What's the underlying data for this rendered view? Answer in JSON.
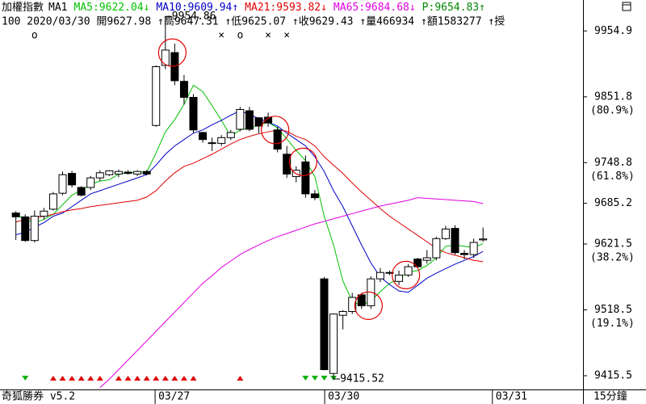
{
  "chart_data": {
    "type": "candlestick",
    "header": [
      "加權指數",
      "MA1"
    ],
    "price_line": {
      "text": "P:9654.83",
      "arrow": "↑",
      "color": "#008800"
    },
    "info_line": "100 2020/03/30 開9627.98 ↑高9647.31 ↑低9625.07 ↑收9629.43 ↑量466934 ↑額1583277 ↑授",
    "footer": "奇狐勝券 v5.2",
    "period": "15分鐘",
    "up_color": "#ffffff",
    "down_color": "#000000",
    "open": [
      9670,
      9664,
      9627,
      9665,
      9676,
      9701,
      9732,
      9710,
      9710,
      9725,
      9730,
      9731,
      9734,
      9731,
      9735,
      9807,
      9901,
      9921,
      9876,
      9851,
      9796,
      9780,
      9779,
      9788,
      9801,
      9830,
      9819,
      9820,
      9800,
      9762,
      9727,
      9750,
      9700,
      9567,
      9419,
      9510,
      9516,
      9542,
      9525,
      9567,
      9577,
      9563,
      9573,
      9598,
      9596,
      9600,
      9630,
      9646,
      9607,
      9605,
      9627.98
    ],
    "high": [
      9673,
      9668,
      9674,
      9678,
      9703,
      9735,
      9736,
      9712,
      9728,
      9737,
      9737,
      9738,
      9737,
      9737,
      9737,
      9901,
      9954.86,
      9935,
      9886,
      9856,
      9797,
      9788,
      9792,
      9800,
      9836,
      9836,
      9820,
      9827,
      9805,
      9775,
      9743,
      9760,
      9706,
      9570,
      9512,
      9518,
      9545,
      9545,
      9571,
      9584,
      9580,
      9580,
      9590,
      9600,
      9612,
      9633,
      9650,
      9651,
      9612,
      9630,
      9647.31
    ],
    "low": [
      9628,
      9625,
      9624,
      9660,
      9674,
      9698,
      9710,
      9696,
      9706,
      9720,
      9728,
      9726,
      9730,
      9728,
      9729,
      9805,
      9895,
      9870,
      9840,
      9795,
      9780,
      9767,
      9775,
      9784,
      9798,
      9798,
      9795,
      9805,
      9765,
      9725,
      9718,
      9694,
      9690,
      9424,
      9415.52,
      9488,
      9512,
      9520,
      9520,
      9562,
      9573,
      9557,
      9570,
      9584,
      9591,
      9596,
      9628,
      9605,
      9598,
      9600,
      9625.07
    ],
    "close": [
      9664,
      9627,
      9665,
      9673,
      9700,
      9730,
      9714,
      9698,
      9725,
      9733,
      9736,
      9735,
      9732,
      9735,
      9731,
      9899,
      9925,
      9877,
      9851,
      9800,
      9785,
      9779,
      9788,
      9796,
      9832,
      9801,
      9806,
      9811,
      9770,
      9731,
      9737,
      9700,
      9694,
      9425,
      9512,
      9516,
      9538,
      9525,
      9567,
      9577,
      9576,
      9573,
      9586,
      9586,
      9600,
      9630,
      9645,
      9608,
      9605,
      9624,
      9629.43
    ],
    "series": [
      {
        "name": "MA5:9622.04",
        "arrow": "↓",
        "color": "#00c000",
        "values": [
          9668,
          9660,
          9655,
          9660,
          9668,
          9683,
          9698,
          9706,
          9715,
          9720,
          9722,
          9731,
          9733,
          9734,
          9734,
          9764,
          9797,
          9816,
          9840,
          9870,
          9860,
          9838,
          9815,
          9790,
          9800,
          9803,
          9807,
          9812,
          9803,
          9786,
          9768,
          9752,
          9727,
          9665,
          9620,
          9564,
          9532,
          9525,
          9533,
          9547,
          9560,
          9567,
          9578,
          9580,
          9588,
          9600,
          9618,
          9620,
          9618,
          9616,
          9622.04
        ]
      },
      {
        "name": "MA10:9609.94",
        "arrow": "↑",
        "color": "#0000c8",
        "values": [
          9636,
          9640,
          9648,
          9655,
          9665,
          9670,
          9680,
          9690,
          9700,
          9705,
          9710,
          9715,
          9720,
          9725,
          9730,
          9745,
          9762,
          9775,
          9785,
          9795,
          9800,
          9808,
          9815,
          9823,
          9830,
          9824,
          9818,
          9812,
          9806,
          9795,
          9785,
          9775,
          9758,
          9735,
          9705,
          9680,
          9650,
          9620,
          9592,
          9570,
          9558,
          9548,
          9546,
          9557,
          9568,
          9576,
          9583,
          9590,
          9596,
          9602,
          9609.94
        ]
      },
      {
        "name": "MA21:9593.82",
        "arrow": "↓",
        "color": "#e00000",
        "values": [
          9656,
          9660,
          9663,
          9665,
          9668,
          9672,
          9675,
          9677,
          9680,
          9682,
          9684,
          9686,
          9688,
          9690,
          9695,
          9705,
          9720,
          9733,
          9743,
          9748,
          9755,
          9762,
          9770,
          9778,
          9785,
          9790,
          9794,
          9797,
          9800,
          9798,
          9790,
          9785,
          9775,
          9758,
          9745,
          9732,
          9717,
          9703,
          9690,
          9677,
          9665,
          9655,
          9645,
          9635,
          9625,
          9615,
          9608,
          9604,
          9600,
          9596,
          9593.82
        ]
      },
      {
        "name": "MA65:9684.68",
        "arrow": "↓",
        "color": "#e000e0",
        "values": [
          null,
          null,
          null,
          null,
          null,
          null,
          null,
          null,
          null,
          9397,
          9410,
          9425,
          9440,
          9455,
          9470,
          9485,
          9500,
          9515,
          9530,
          9545,
          9560,
          9572,
          9585,
          9595,
          9605,
          9613,
          9620,
          9627,
          9633,
          9638,
          9643,
          9648,
          9653,
          9657,
          9661,
          9665,
          9669,
          9673,
          9677,
          9681,
          9684,
          9687,
          9690,
          9694,
          9693,
          9692,
          9691,
          9690,
          9689,
          9688,
          9684.68
        ]
      }
    ],
    "xlim": [
      -1.7,
      60.7
    ],
    "ylim": [
      9394,
      9978
    ],
    "yticks": [
      9954.9,
      9851.8,
      9748.8,
      9685.2,
      9621.5,
      9518.5,
      9415.5
    ],
    "ytick_percents": [
      {
        "value": 9851.8,
        "label": "(80.9%)"
      },
      {
        "value": 9748.8,
        "label": "(61.8%)"
      },
      {
        "value": 9621.5,
        "label": "(38.2%)"
      },
      {
        "value": 9518.5,
        "label": "(19.1%)"
      }
    ],
    "x_labels": [
      {
        "value": 14.9,
        "label": "03/27"
      },
      {
        "value": 33.05,
        "label": "03/30"
      },
      {
        "value": 51,
        "label": "03/31"
      }
    ],
    "top_marks": [
      {
        "index": 2,
        "symbol": "o"
      },
      {
        "index": 22,
        "symbol": "×"
      },
      {
        "index": 24,
        "symbol": "o"
      },
      {
        "index": 27,
        "symbol": "×"
      },
      {
        "index": 29,
        "symbol": "×"
      }
    ],
    "top_mark_color": "#e00000",
    "up_signals": {
      "color": "#e00000",
      "indices": [
        4,
        5,
        6,
        7,
        8,
        9,
        11,
        12,
        13,
        14,
        15,
        16,
        17,
        18,
        19,
        24
      ]
    },
    "down_signals": {
      "color": "#00b000",
      "indices": [
        1,
        31,
        32,
        33,
        34
      ]
    },
    "circled": {
      "color": "#e00000",
      "indices": [
        17,
        28,
        31,
        38,
        42
      ]
    },
    "annotations": [
      {
        "index": 16,
        "field": "high"
      },
      {
        "index": 34,
        "field": "low"
      }
    ]
  }
}
